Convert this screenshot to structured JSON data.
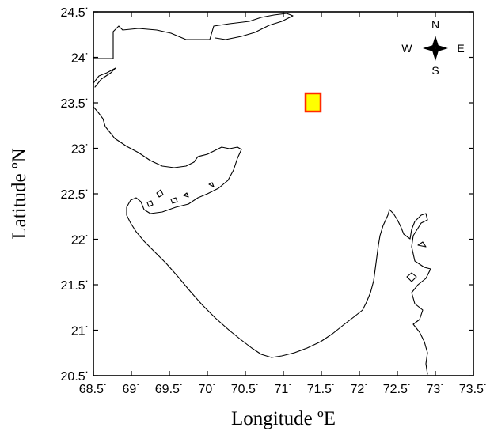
{
  "map": {
    "xlabel": "Longitude ºE",
    "ylabel": "Latitude ºN",
    "x_ticks": [
      "68.5˙",
      "69˙",
      "69.5˙",
      "70˙",
      "70.5˙",
      "71˙",
      "71.5˙",
      "72˙",
      "72.5˙",
      "73˙",
      "73.5˙"
    ],
    "y_ticks": [
      "20.5˙",
      "21˙",
      "21.5˙",
      "22˙",
      "22.5˙",
      "23˙",
      "23.5˙",
      "24˙",
      "24.5˙"
    ],
    "extent": {
      "lon": [
        68.5,
        73.5
      ],
      "lat": [
        20.5,
        24.5
      ]
    },
    "compass": {
      "n": "N",
      "s": "S",
      "e": "E",
      "w": "W"
    },
    "marker": {
      "lon": 71.42,
      "lat": 23.48,
      "fill": "#ffff00",
      "stroke": "#ff2a00"
    },
    "colors": {
      "land_outline": "#000000",
      "background": "#ffffff"
    }
  }
}
